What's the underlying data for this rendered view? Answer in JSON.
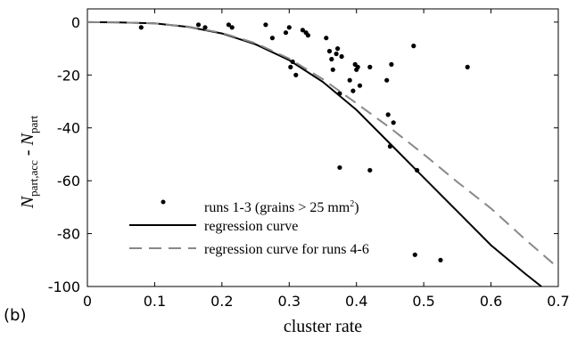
{
  "panel_label": "(b)",
  "chart_data": {
    "type": "scatter",
    "xlabel": "cluster rate",
    "ylabel": {
      "main": "N",
      "sub1": "part,acc",
      "sep": " - ",
      "main2": "N",
      "sub2": "part"
    },
    "xlim": [
      0,
      0.7
    ],
    "ylim": [
      -100,
      5
    ],
    "xticks": [
      0,
      0.1,
      0.2,
      0.3,
      0.4,
      0.5,
      0.6,
      0.7
    ],
    "xtick_labels": [
      "0",
      "0.1",
      "0.2",
      "0.3",
      "0.4",
      "0.5",
      "0.6",
      "0.7"
    ],
    "yticks": [
      0,
      -20,
      -40,
      -60,
      -80,
      -100
    ],
    "ytick_labels": [
      "0",
      "-20",
      "-40",
      "-60",
      "-80",
      "-100"
    ],
    "grid": false,
    "legend_position": "lower-left",
    "legend": {
      "points_label": "runs 1-3 (grains > 25 mm",
      "points_label_sup": "2",
      "points_label_end": ")",
      "curve_label": "regression curve",
      "curve2_label": "regression curve for runs 4-6"
    },
    "series": [
      {
        "kind": "points",
        "color": "#000000",
        "x": [
          0.08,
          0.165,
          0.175,
          0.21,
          0.215,
          0.265,
          0.275,
          0.295,
          0.3,
          0.302,
          0.305,
          0.31,
          0.32,
          0.325,
          0.328,
          0.355,
          0.36,
          0.363,
          0.365,
          0.37,
          0.372,
          0.375,
          0.375,
          0.378,
          0.39,
          0.395,
          0.398,
          0.4,
          0.402,
          0.405,
          0.42,
          0.42,
          0.445,
          0.447,
          0.45,
          0.452,
          0.455,
          0.485,
          0.487,
          0.49,
          0.525,
          0.565
        ],
        "y": [
          -2,
          -1,
          -2,
          -1,
          -2,
          -1,
          -6,
          -4,
          -2,
          -17,
          -15,
          -20,
          -3,
          -4,
          -5,
          -6,
          -11,
          -14,
          -18,
          -12,
          -10,
          -27,
          -55,
          -13,
          -22,
          -26,
          -16,
          -18,
          -17,
          -24,
          -17,
          -56,
          -22,
          -35,
          -47,
          -16,
          -38,
          -9,
          -88,
          -56,
          -90,
          -17
        ]
      },
      {
        "kind": "line",
        "name": "regression curve",
        "color": "#000000",
        "dash": false,
        "x": [
          0,
          0.05,
          0.1,
          0.15,
          0.2,
          0.25,
          0.3,
          0.35,
          0.4,
          0.45,
          0.5,
          0.55,
          0.6,
          0.65,
          0.675
        ],
        "y": [
          0,
          -0.1,
          -0.5,
          -1.8,
          -4.3,
          -8.4,
          -14.4,
          -22.6,
          -33.2,
          -46.0,
          -58.8,
          -71.6,
          -84.4,
          -95.0,
          -100
        ]
      },
      {
        "kind": "line",
        "name": "regression curve for runs 4-6",
        "color": "#888888",
        "dash": true,
        "x": [
          0,
          0.05,
          0.1,
          0.15,
          0.2,
          0.25,
          0.3,
          0.35,
          0.4,
          0.45,
          0.5,
          0.55,
          0.6,
          0.65,
          0.7
        ],
        "y": [
          0,
          -0.1,
          -0.5,
          -1.7,
          -4.1,
          -8.0,
          -13.8,
          -21.6,
          -30.7,
          -40.0,
          -50.0,
          -60.5,
          -70.5,
          -82.0,
          -93
        ]
      }
    ]
  }
}
